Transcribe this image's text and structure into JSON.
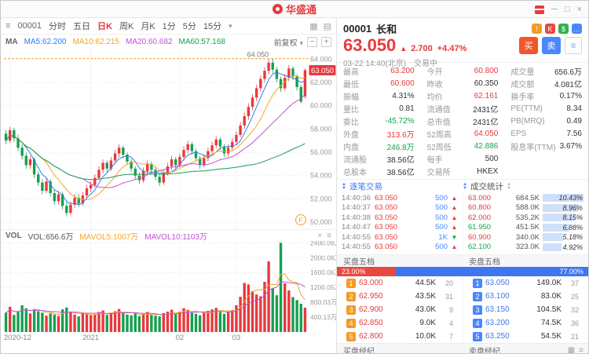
{
  "titlebar": {
    "logo_text": "华盛通"
  },
  "window_controls": {
    "minimize": "─",
    "maximize": "□",
    "close": "×"
  },
  "chart_toolbar": {
    "symbol": "00001",
    "periods": [
      "分时",
      "五日",
      "日K",
      "周K",
      "月K",
      "1分",
      "5分",
      "15分"
    ],
    "active_period": "日K",
    "indicator_label": "MA",
    "ma_items": [
      {
        "label": "MA5:62.200",
        "color": "#2f7cf6"
      },
      {
        "label": "MA10:62.215",
        "color": "#f5a623"
      },
      {
        "label": "MA20:60.682",
        "color": "#c24fd8"
      },
      {
        "label": "MA60:57.168",
        "color": "#16a050"
      }
    ],
    "adjust_label": "前复权"
  },
  "vol_header": {
    "indicator": "VOL",
    "vol": "VOL:656.6万",
    "mavol5": "MAVOL5:1007万",
    "mavol10": "MAVOL10:1103万"
  },
  "chart_data": {
    "type": "candlestick",
    "symbol": "00001",
    "period": "日K",
    "adjust": "前复权",
    "y_range": [
      49.4,
      64.9
    ],
    "y_ticks": [
      {
        "v": 64,
        "label": "64.000"
      },
      {
        "v": 62,
        "label": "62.000"
      },
      {
        "v": 60,
        "label": "60.000"
      },
      {
        "v": 58,
        "label": "58.000"
      },
      {
        "v": 56,
        "label": "56.000"
      },
      {
        "v": 54,
        "label": "54.000"
      },
      {
        "v": 52,
        "label": "52.000"
      },
      {
        "v": 50,
        "label": "50.000"
      }
    ],
    "price_tag": {
      "v": 63.05,
      "label": "63.050"
    },
    "high_line": {
      "v": 64.05,
      "label": "64.050"
    },
    "x_ticks": [
      {
        "i": 1,
        "label": "2020-12"
      },
      {
        "i": 21,
        "label": "2021"
      },
      {
        "i": 43,
        "label": "02"
      },
      {
        "i": 57,
        "label": "03"
      }
    ],
    "ma_lines": [
      {
        "window": 5,
        "color": "#2f7cf6"
      },
      {
        "window": 10,
        "color": "#f5a623"
      },
      {
        "window": 20,
        "color": "#c24fd8"
      },
      {
        "window": 60,
        "color": "#16a050"
      }
    ],
    "candles": [
      [
        57.6,
        57.9,
        56.7,
        57.0
      ],
      [
        57.0,
        58.2,
        56.8,
        57.9
      ],
      [
        57.9,
        58.1,
        56.9,
        57.2
      ],
      [
        57.2,
        57.5,
        56.1,
        56.4
      ],
      [
        56.4,
        56.7,
        55.4,
        55.7
      ],
      [
        55.7,
        56.0,
        54.6,
        54.9
      ],
      [
        54.9,
        55.7,
        54.6,
        55.4
      ],
      [
        55.4,
        55.6,
        53.8,
        54.1
      ],
      [
        54.1,
        54.4,
        53.1,
        53.4
      ],
      [
        53.4,
        53.7,
        52.4,
        52.7
      ],
      [
        52.7,
        53.8,
        52.5,
        53.5
      ],
      [
        53.5,
        53.7,
        52.2,
        52.5
      ],
      [
        52.5,
        52.8,
        51.5,
        51.8
      ],
      [
        51.8,
        52.7,
        51.5,
        52.4
      ],
      [
        52.4,
        52.6,
        51.1,
        51.4
      ],
      [
        51.4,
        51.7,
        50.5,
        50.8
      ],
      [
        50.8,
        51.8,
        50.6,
        51.5
      ],
      [
        51.5,
        52.4,
        51.2,
        52.1
      ],
      [
        52.1,
        52.4,
        51.3,
        51.6
      ],
      [
        51.6,
        52.6,
        51.4,
        52.3
      ],
      [
        52.3,
        53.2,
        52.0,
        52.9
      ],
      [
        52.9,
        53.5,
        52.6,
        53.2
      ],
      [
        53.2,
        54.1,
        53.0,
        53.8
      ],
      [
        53.8,
        54.8,
        53.6,
        54.5
      ],
      [
        54.5,
        55.4,
        54.2,
        55.1
      ],
      [
        55.1,
        55.3,
        54.3,
        54.6
      ],
      [
        54.6,
        55.6,
        54.4,
        55.3
      ],
      [
        55.3,
        56.2,
        55.0,
        55.9
      ],
      [
        55.9,
        56.7,
        55.6,
        56.4
      ],
      [
        56.4,
        56.6,
        55.5,
        55.8
      ],
      [
        55.8,
        56.0,
        54.9,
        55.2
      ],
      [
        55.2,
        55.4,
        54.3,
        54.6
      ],
      [
        54.6,
        54.8,
        53.7,
        54.0
      ],
      [
        54.0,
        54.3,
        53.3,
        53.6
      ],
      [
        53.6,
        54.7,
        53.4,
        54.4
      ],
      [
        54.4,
        55.3,
        54.1,
        55.0
      ],
      [
        55.0,
        55.2,
        54.2,
        54.5
      ],
      [
        54.5,
        54.7,
        53.6,
        53.9
      ],
      [
        53.9,
        54.1,
        53.1,
        53.4
      ],
      [
        53.4,
        54.5,
        53.2,
        54.2
      ],
      [
        54.2,
        55.1,
        54.0,
        54.8
      ],
      [
        54.8,
        55.7,
        54.5,
        55.4
      ],
      [
        55.4,
        55.6,
        54.6,
        54.9
      ],
      [
        54.9,
        55.9,
        54.7,
        55.6
      ],
      [
        55.6,
        56.5,
        55.3,
        56.2
      ],
      [
        56.2,
        57.0,
        55.9,
        56.7
      ],
      [
        56.7,
        56.9,
        55.8,
        56.1
      ],
      [
        56.1,
        56.3,
        55.2,
        55.5
      ],
      [
        55.5,
        55.7,
        54.6,
        54.9
      ],
      [
        54.9,
        55.8,
        54.7,
        55.5
      ],
      [
        55.5,
        56.4,
        55.2,
        56.1
      ],
      [
        56.1,
        56.9,
        55.8,
        56.6
      ],
      [
        56.6,
        57.4,
        56.3,
        57.1
      ],
      [
        57.1,
        57.3,
        56.2,
        56.5
      ],
      [
        56.5,
        56.7,
        55.6,
        55.9
      ],
      [
        55.9,
        56.7,
        55.6,
        56.4
      ],
      [
        56.4,
        57.2,
        56.1,
        56.9
      ],
      [
        56.9,
        57.8,
        56.6,
        57.5
      ],
      [
        57.5,
        58.6,
        57.3,
        58.3
      ],
      [
        58.3,
        59.4,
        58.0,
        59.1
      ],
      [
        59.1,
        60.2,
        58.8,
        59.9
      ],
      [
        59.9,
        61.0,
        59.6,
        60.7
      ],
      [
        60.7,
        61.8,
        60.4,
        61.5
      ],
      [
        61.5,
        62.6,
        61.2,
        62.3
      ],
      [
        62.3,
        63.3,
        62.0,
        63.0
      ],
      [
        63.0,
        64.0,
        62.7,
        63.7
      ],
      [
        63.7,
        64.05,
        62.8,
        63.1
      ],
      [
        63.1,
        63.3,
        62.0,
        62.3
      ],
      [
        62.3,
        62.5,
        61.2,
        61.5
      ],
      [
        61.5,
        62.7,
        61.3,
        62.4
      ],
      [
        62.4,
        63.5,
        62.1,
        63.2
      ],
      [
        63.2,
        63.4,
        62.2,
        62.5
      ],
      [
        62.5,
        62.7,
        61.3,
        61.6
      ],
      [
        61.6,
        61.8,
        60.2,
        60.35
      ],
      [
        60.8,
        63.2,
        60.6,
        63.05
      ]
    ],
    "volumes": [
      520,
      680,
      460,
      540,
      720,
      640,
      500,
      620,
      560,
      520,
      440,
      500,
      470,
      430,
      610,
      660,
      540,
      470,
      420,
      510,
      480,
      450,
      470,
      540,
      580,
      460,
      520,
      560,
      620,
      510,
      470,
      450,
      500,
      430,
      490,
      540,
      460,
      440,
      420,
      510,
      550,
      600,
      480,
      540,
      640,
      600,
      520,
      490,
      450,
      530,
      570,
      610,
      650,
      540,
      490,
      550,
      590,
      720,
      950,
      1320,
      1280,
      1100,
      1010,
      960,
      1350,
      1900,
      1180,
      990,
      2400,
      1310,
      1120,
      940,
      860,
      760,
      656
    ],
    "vol_range": [
      0,
      2450
    ],
    "vol_ticks": [
      {
        "v": 2400,
        "label": "2400.09万"
      },
      {
        "v": 2000,
        "label": "2000.08万"
      },
      {
        "v": 1600,
        "label": "1600.06万"
      },
      {
        "v": 1200,
        "label": "1200.05万"
      },
      {
        "v": 800,
        "label": "800.03万"
      },
      {
        "v": 400,
        "label": "400.13万"
      }
    ],
    "mavol_lines": [
      {
        "window": 5,
        "color": "#f5a623"
      },
      {
        "window": 10,
        "color": "#c24fd8"
      }
    ]
  },
  "quote": {
    "symbol": "00001",
    "name": "长和",
    "price": "63.050",
    "change": "2.700",
    "change_pct": "+4.47%",
    "datetime": "03-22 14:40(北京)",
    "session_status": "交易中",
    "buy_label": "买",
    "sell_label": "卖",
    "icons": [
      {
        "name": "alert-icon",
        "color": "#f59a23",
        "glyph": "!"
      },
      {
        "name": "kline-icon",
        "color": "#e8493f",
        "glyph": "K"
      },
      {
        "name": "money-icon",
        "color": "#2bb24c",
        "glyph": "$"
      },
      {
        "name": "more-icon",
        "color": "#4a86ff",
        "glyph": "…"
      }
    ]
  },
  "stats": {
    "rows": [
      [
        {
          "label": "最高",
          "value": "63.200",
          "trend": "up"
        },
        {
          "label": "今开",
          "value": "60.800",
          "trend": "up"
        },
        {
          "label": "成交量",
          "value": "656.6万",
          "trend": "flat"
        }
      ],
      [
        {
          "label": "最低",
          "value": "60.600",
          "trend": "up"
        },
        {
          "label": "昨收",
          "value": "60.350",
          "trend": "flat"
        },
        {
          "label": "成交额",
          "value": "4.081亿",
          "trend": "flat"
        }
      ],
      [
        {
          "label": "振幅",
          "value": "4.31%",
          "trend": "flat"
        },
        {
          "label": "均价",
          "value": "62.161",
          "trend": "up"
        },
        {
          "label": "换手率",
          "value": "0.17%",
          "trend": "flat"
        }
      ],
      [
        {
          "label": "量比",
          "value": "0.81",
          "trend": "flat"
        },
        {
          "label": "流通值",
          "value": "2431亿",
          "trend": "flat"
        },
        {
          "label": "PE(TTM)",
          "value": "8.34",
          "trend": "flat"
        }
      ],
      [
        {
          "label": "委比",
          "value": "-45.72%",
          "trend": "down"
        },
        {
          "label": "总市值",
          "value": "2431亿",
          "trend": "flat"
        },
        {
          "label": "PB(MRQ)",
          "value": "0.49",
          "trend": "flat"
        }
      ],
      [
        {
          "label": "外盘",
          "value": "313.6万",
          "trend": "up"
        },
        {
          "label": "52周高",
          "value": "64.050",
          "trend": "up"
        },
        {
          "label": "EPS",
          "value": "7.56",
          "trend": "flat"
        }
      ],
      [
        {
          "label": "内盘",
          "value": "246.8万",
          "trend": "down"
        },
        {
          "label": "52周低",
          "value": "42.886",
          "trend": "down"
        },
        {
          "label": "股息率(TTM)",
          "value": "3.67%",
          "trend": "flat"
        }
      ],
      [
        {
          "label": "流通股",
          "value": "38.56亿",
          "trend": "flat"
        },
        {
          "label": "每手",
          "value": "500",
          "trend": "flat"
        },
        {
          "label": "",
          "value": "",
          "trend": "flat"
        }
      ],
      [
        {
          "label": "总股本",
          "value": "38.56亿",
          "trend": "flat"
        },
        {
          "label": "交易所",
          "value": "HKEX",
          "trend": "flat"
        },
        {
          "label": "",
          "value": "",
          "trend": "flat"
        }
      ]
    ]
  },
  "ticks": {
    "title": "逐笔交易",
    "rows": [
      {
        "time": "14:40:36",
        "price": "63.050",
        "vol": "500",
        "dir": "up"
      },
      {
        "time": "14:40:37",
        "price": "63.050",
        "vol": "500",
        "dir": "up"
      },
      {
        "time": "14:40:38",
        "price": "63.050",
        "vol": "500",
        "dir": "up"
      },
      {
        "time": "14:40:47",
        "price": "63.050",
        "vol": "500",
        "dir": "up"
      },
      {
        "time": "14:40:55",
        "price": "63.050",
        "vol": "1K",
        "dir": "down"
      },
      {
        "time": "14:40:55",
        "price": "63.050",
        "vol": "500",
        "dir": "up"
      }
    ]
  },
  "dist": {
    "title": "成交统计",
    "rows": [
      {
        "price": "63.000",
        "vol": "684.5K",
        "pct": "10.43%",
        "pctv": 10.43,
        "trend": "up"
      },
      {
        "price": "60.800",
        "vol": "588.0K",
        "pct": "8.96%",
        "pctv": 8.96,
        "trend": "up"
      },
      {
        "price": "62.000",
        "vol": "535.2K",
        "pct": "8.15%",
        "pctv": 8.15,
        "trend": "up"
      },
      {
        "price": "61.950",
        "vol": "451.5K",
        "pct": "6.88%",
        "pctv": 6.88,
        "trend": "down"
      },
      {
        "price": "60.900",
        "vol": "340.0K",
        "pct": "5.18%",
        "pctv": 5.18,
        "trend": "up"
      },
      {
        "price": "62.100",
        "vol": "323.0K",
        "pct": "4.92%",
        "pctv": 4.92,
        "trend": "down"
      }
    ]
  },
  "depth": {
    "bid_title": "买盘五档",
    "ask_title": "卖盘五档",
    "bid_pct": "23.00%",
    "ask_pct": "77.00%",
    "bid_ratio": 23,
    "ask_ratio": 77,
    "bids": [
      {
        "n": "1",
        "price": "63.000",
        "size": "44.5K",
        "count": "20"
      },
      {
        "n": "2",
        "price": "62.950",
        "size": "43.5K",
        "count": "31"
      },
      {
        "n": "3",
        "price": "62.900",
        "size": "43.0K",
        "count": "9"
      },
      {
        "n": "4",
        "price": "62.850",
        "size": "9.0K",
        "count": "4"
      },
      {
        "n": "5",
        "price": "62.800",
        "size": "10.0K",
        "count": "7"
      }
    ],
    "asks": [
      {
        "n": "1",
        "price": "63.050",
        "size": "149.0K",
        "count": "37"
      },
      {
        "n": "2",
        "price": "63.100",
        "size": "83.0K",
        "count": "25"
      },
      {
        "n": "3",
        "price": "63.150",
        "size": "104.5K",
        "count": "32"
      },
      {
        "n": "4",
        "price": "63.200",
        "size": "74.5K",
        "count": "36"
      },
      {
        "n": "5",
        "price": "63.250",
        "size": "54.5K",
        "count": "21"
      }
    ]
  },
  "brokers": {
    "bid_title": "买盘经纪",
    "ask_title": "卖盘经纪"
  },
  "colors": {
    "up": "#e8393d",
    "down": "#16a050",
    "accent_blue": "#3f76f0",
    "bid_badge": "#f59a23",
    "ask_badge": "#4a86ff",
    "high_line": "#f0a23c",
    "dist_bar": "#cfe0f8"
  }
}
